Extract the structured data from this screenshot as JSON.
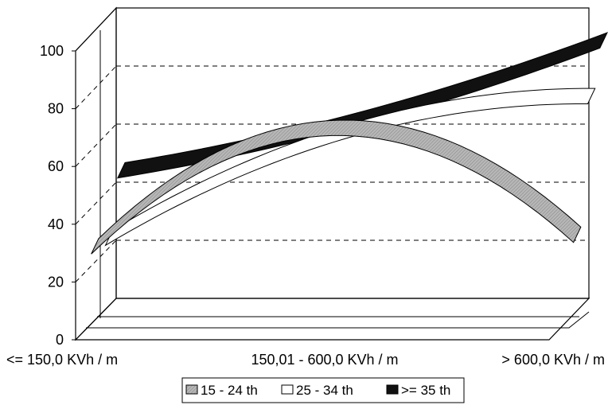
{
  "chart_data": {
    "type": "line",
    "title": "",
    "xlabel": "",
    "ylabel": "",
    "ylim": [
      0,
      100
    ],
    "yticks": [
      "0",
      "20",
      "40",
      "60",
      "80",
      "100"
    ],
    "categories": [
      "<= 150,0 KVh / m",
      "150,01 - 600,0 KVh / m",
      "> 600,0 KVh / m"
    ],
    "series": [
      {
        "name": "15 - 24 th",
        "values": [
          30,
          71,
          34
        ],
        "color": "#a9a9a9",
        "pattern": "hatched-gray"
      },
      {
        "name": "25 - 34 th",
        "values": [
          28,
          65,
          77
        ],
        "color": "#ffffff",
        "pattern": "white"
      },
      {
        "name": ">= 35 th",
        "values": [
          47,
          65,
          92
        ],
        "color": "#111111",
        "pattern": "black"
      }
    ],
    "grid": "dashed-horizontal",
    "legend_position": "bottom",
    "style": "3d-ribbon"
  }
}
